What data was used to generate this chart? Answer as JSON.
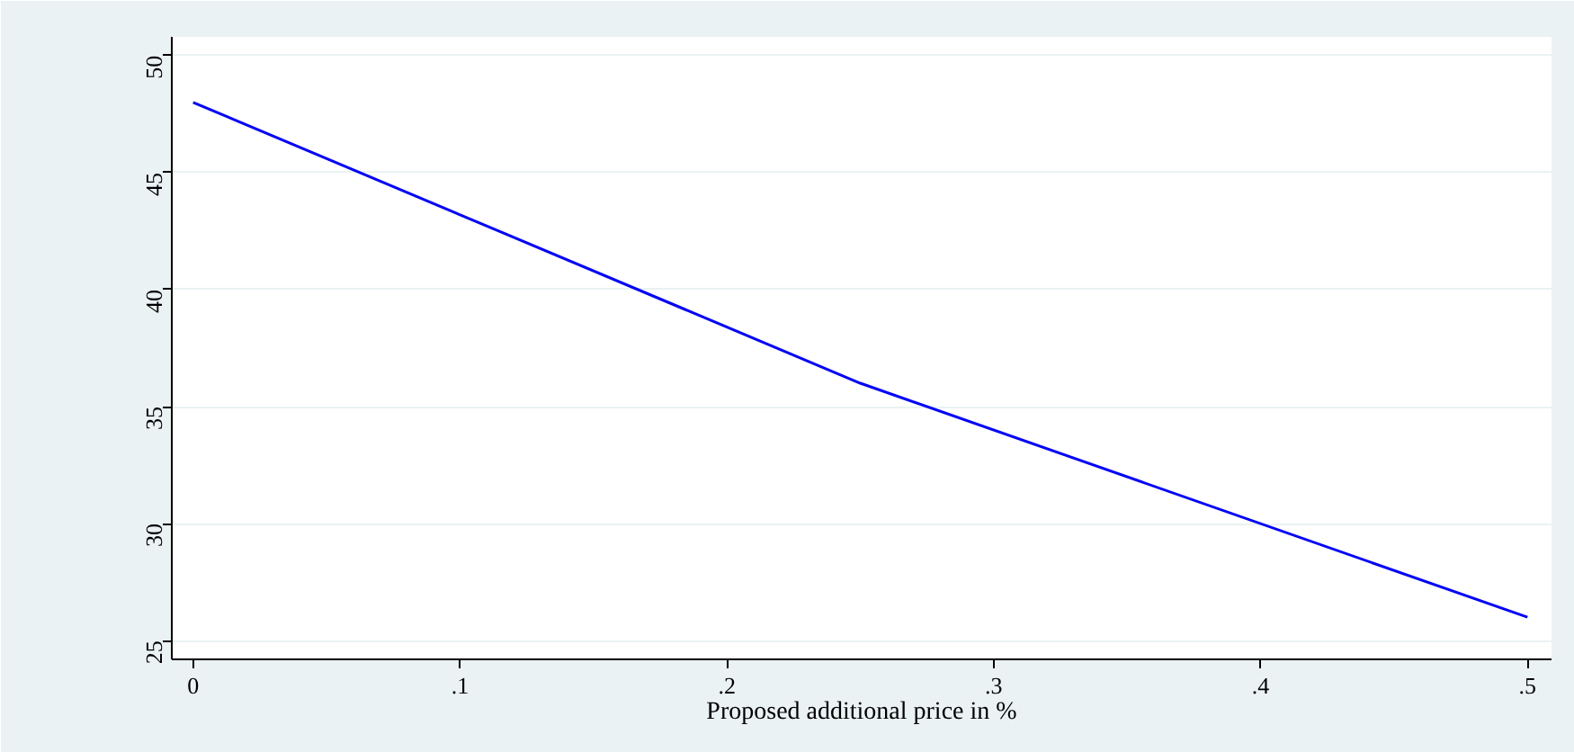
{
  "chart_data": {
    "type": "line",
    "xlabel": "Proposed additional price in %",
    "x": [
      0,
      0.25,
      0.5
    ],
    "series": [
      {
        "color": "#0000ff",
        "values": [
          48,
          36,
          26
        ]
      }
    ],
    "xlim": [
      -0.008,
      0.509
    ],
    "ylim": [
      24.2,
      50.8
    ],
    "xticks": [
      {
        "value": 0,
        "label": "0"
      },
      {
        "value": 0.1,
        "label": ".1"
      },
      {
        "value": 0.2,
        "label": ".2"
      },
      {
        "value": 0.3,
        "label": ".3"
      },
      {
        "value": 0.4,
        "label": ".4"
      },
      {
        "value": 0.5,
        "label": ".5"
      }
    ],
    "yticks": [
      25,
      30,
      35,
      40,
      45,
      50
    ],
    "grid": "y",
    "marker": "none",
    "line_style": "solid"
  }
}
